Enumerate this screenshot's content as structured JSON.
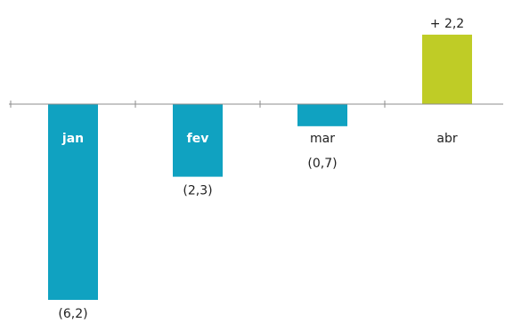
{
  "chart_data": {
    "type": "bar",
    "title": "",
    "xlabel": "",
    "ylabel": "",
    "categories": [
      "jan",
      "fev",
      "mar",
      "abr"
    ],
    "values": [
      -6.2,
      -2.3,
      -0.7,
      2.2
    ],
    "value_labels": [
      "(6,2)",
      "(2,3)",
      "(0,7)",
      "+ 2,2"
    ],
    "ylim": [
      -6.2,
      2.2
    ],
    "grid": false,
    "legend": "none",
    "colors": {
      "negative": "#10a2c1",
      "positive": "#bfcc26",
      "axis": "#8c8c8c",
      "label_on_bar": "#ffffff",
      "label_off_bar": "#222222"
    }
  }
}
